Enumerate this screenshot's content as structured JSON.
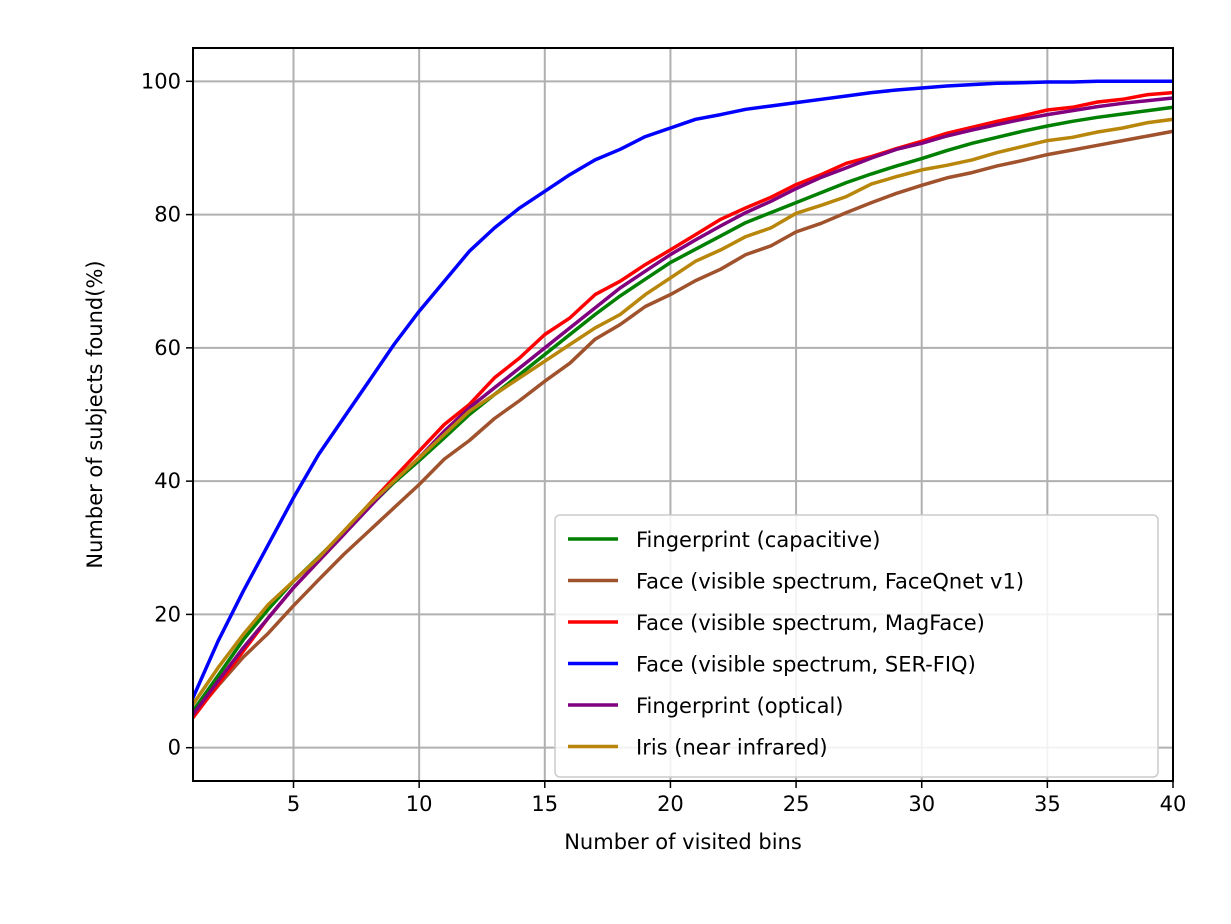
{
  "chart_data": {
    "type": "line",
    "title": "",
    "xlabel": "Number of visited bins",
    "ylabel": "Number of subjects found(%)",
    "xlim": [
      1,
      40
    ],
    "ylim": [
      -5,
      105
    ],
    "xticks": [
      5,
      10,
      15,
      20,
      25,
      30,
      35,
      40
    ],
    "yticks": [
      0,
      20,
      40,
      60,
      80,
      100
    ],
    "grid": true,
    "legend_position": "lower right",
    "x": [
      1,
      2,
      3,
      4,
      5,
      6,
      7,
      8,
      9,
      10,
      11,
      12,
      13,
      14,
      15,
      16,
      17,
      18,
      19,
      20,
      21,
      22,
      23,
      24,
      25,
      26,
      27,
      28,
      29,
      30,
      31,
      32,
      33,
      34,
      35,
      36,
      37,
      38,
      39,
      40
    ],
    "series": [
      {
        "name": "Fingerprint (capacitive)",
        "color": "#008000",
        "values": [
          5.5,
          10.8,
          16.2,
          20.8,
          25,
          28.6,
          32.3,
          36.1,
          39.8,
          43.1,
          46.5,
          50,
          53,
          56,
          59,
          62,
          65,
          67.8,
          70.3,
          72.8,
          74.8,
          76.8,
          78.8,
          80.3,
          81.8,
          83.3,
          84.8,
          86.1,
          87.3,
          88.4,
          89.6,
          90.7,
          91.6,
          92.5,
          93.3,
          94,
          94.6,
          95.1,
          95.6,
          96.1
        ]
      },
      {
        "name": "Face (visible spectrum, FaceQnet v1)",
        "color": "#a0522d",
        "values": [
          4.8,
          9.3,
          13.6,
          17.2,
          21.3,
          25.2,
          29,
          32.5,
          36,
          39.5,
          43.3,
          46.1,
          49.4,
          52.1,
          55,
          57.7,
          61.3,
          63.5,
          66.2,
          68,
          70.1,
          71.8,
          74,
          75.3,
          77.4,
          78.7,
          80.3,
          81.8,
          83.2,
          84.4,
          85.5,
          86.3,
          87.3,
          88.1,
          89,
          89.7,
          90.4,
          91.1,
          91.8,
          92.5
        ]
      },
      {
        "name": "Face (visible spectrum, MagFace)",
        "color": "#ff0000",
        "values": [
          4.5,
          9.5,
          14.5,
          19.5,
          24,
          28,
          32,
          36.5,
          40.5,
          44.5,
          48.5,
          51.5,
          55.5,
          58.5,
          62,
          64.5,
          68,
          70,
          72.5,
          74.7,
          77,
          79.3,
          81,
          82.6,
          84.5,
          86,
          87.7,
          88.7,
          89.9,
          91,
          92.2,
          93.1,
          94,
          94.8,
          95.7,
          96.1,
          96.9,
          97.3,
          98,
          98.3
        ]
      },
      {
        "name": "Face (visible spectrum, SER-FIQ)",
        "color": "#0000ff",
        "values": [
          7.5,
          16,
          23.5,
          30.5,
          37.5,
          44,
          49.5,
          55,
          60.5,
          65.5,
          70,
          74.5,
          78,
          81,
          83.5,
          86,
          88.2,
          89.8,
          91.7,
          93,
          94.3,
          95,
          95.8,
          96.3,
          96.8,
          97.3,
          97.8,
          98.3,
          98.7,
          99,
          99.3,
          99.5,
          99.7,
          99.8,
          99.9,
          99.9,
          100,
          100,
          100,
          100
        ]
      },
      {
        "name": "Fingerprint (optical)",
        "color": "#800080",
        "values": [
          5,
          10,
          15,
          19.5,
          24,
          28,
          32,
          36,
          40,
          43.5,
          47.5,
          51,
          54,
          57,
          60,
          63,
          66,
          69,
          71.5,
          74,
          76.2,
          78.3,
          80.3,
          82,
          83.9,
          85.6,
          87,
          88.5,
          89.8,
          90.7,
          91.8,
          92.7,
          93.5,
          94.3,
          95,
          95.6,
          96.2,
          96.7,
          97.1,
          97.5
        ]
      },
      {
        "name": "Iris (near infrared)",
        "color": "#b8860b",
        "values": [
          6.5,
          12,
          17,
          21.5,
          25,
          28.5,
          32.5,
          36.5,
          40,
          43.5,
          47,
          50.5,
          53,
          55.5,
          58,
          60.5,
          63,
          65,
          68,
          70.5,
          73,
          74.7,
          76.7,
          78,
          80.2,
          81.4,
          82.7,
          84.6,
          85.7,
          86.7,
          87.4,
          88.2,
          89.3,
          90.2,
          91.1,
          91.6,
          92.4,
          93,
          93.8,
          94.3
        ]
      }
    ]
  }
}
